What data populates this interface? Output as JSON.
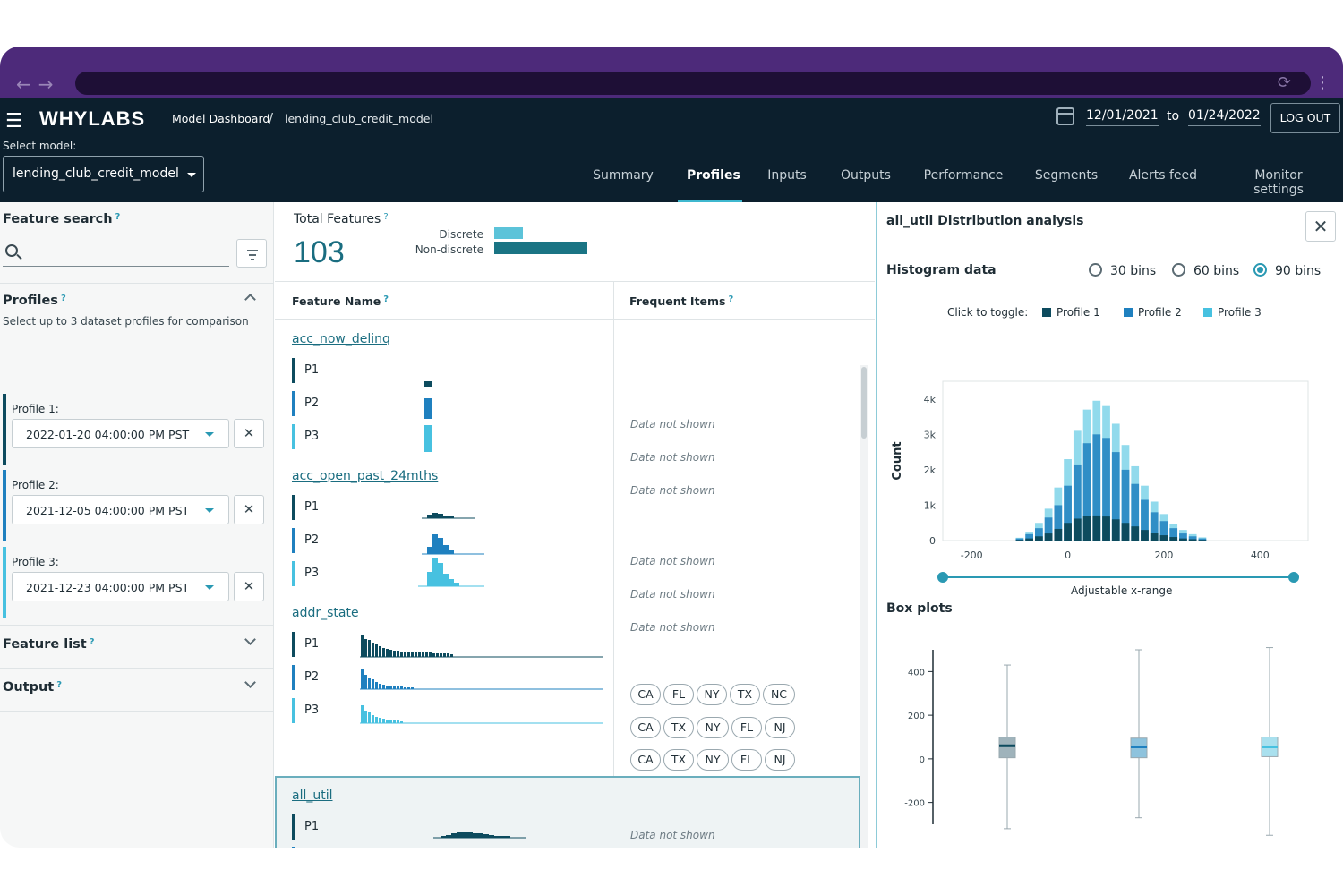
{
  "header": {
    "logo": "WHYLABS",
    "breadcrumb_link": "Model Dashboard",
    "breadcrumb_sep": "/",
    "breadcrumb_current": "lending_club_credit_model",
    "date_from": "12/01/2021",
    "date_to_word": "to",
    "date_to": "01/24/2022",
    "logout": "LOG OUT",
    "select_label": "Select model:",
    "selected_model": "lending_club_credit_model"
  },
  "tabs": [
    "Summary",
    "Profiles",
    "Inputs",
    "Outputs",
    "Performance",
    "Segments",
    "Alerts feed",
    "Monitor settings"
  ],
  "active_tab": "Profiles",
  "left": {
    "feature_search": "Feature search",
    "profiles_title": "Profiles",
    "profiles_sub": "Select up to 3 dataset profiles for comparison",
    "profiles": [
      {
        "label": "Profile 1:",
        "value": "2022-01-20 04:00:00 PM PST",
        "color": "#0d4b5e"
      },
      {
        "label": "Profile 2:",
        "value": "2021-12-05 04:00:00 PM PST",
        "color": "#1f80bf"
      },
      {
        "label": "Profile 3:",
        "value": "2021-12-23 04:00:00 PM PST",
        "color": "#47c1e0"
      }
    ],
    "feature_list": "Feature list",
    "output": "Output",
    "help_mark": "?"
  },
  "middle": {
    "total_features_label": "Total Features",
    "total_features_value": "103",
    "legend_discrete": "Discrete",
    "legend_non_discrete": "Non-discrete",
    "col_feature_name": "Feature Name",
    "col_frequent_items": "Frequent Items",
    "data_not_shown": "Data not shown",
    "profile_labels": [
      "P1",
      "P2",
      "P3"
    ],
    "features": [
      {
        "name": "acc_now_delinq"
      },
      {
        "name": "acc_open_past_24mths"
      },
      {
        "name": "addr_state",
        "items": [
          [
            "CA",
            "FL",
            "NY",
            "TX",
            "NC"
          ],
          [
            "CA",
            "TX",
            "NY",
            "FL",
            "NJ"
          ],
          [
            "CA",
            "TX",
            "NY",
            "FL",
            "NJ"
          ]
        ]
      },
      {
        "name": "all_util"
      }
    ]
  },
  "right": {
    "title": "all_util Distribution analysis",
    "histogram_title": "Histogram data",
    "bin_options": [
      "30 bins",
      "60 bins",
      "90 bins"
    ],
    "selected_bins": "90 bins",
    "click_to_toggle": "Click to toggle:",
    "series": [
      "Profile 1",
      "Profile 2",
      "Profile 3"
    ],
    "slider_label": "Adjustable x-range",
    "boxplots_title": "Box plots"
  },
  "colors": {
    "profile1": "#0d4b5e",
    "profile2": "#1f80bf",
    "profile3": "#47c1e0",
    "accent": "#2a99b3"
  },
  "chart_data": [
    {
      "type": "bar",
      "title": "all_util Distribution analysis",
      "ylabel": "Count",
      "xlim": [
        -260,
        500
      ],
      "ylim": [
        0,
        4500
      ],
      "x_ticks": [
        -200,
        0,
        200,
        400
      ],
      "y_ticks": [
        "0",
        "1k",
        "2k",
        "3k",
        "4k"
      ],
      "x": [
        -100,
        -80,
        -60,
        -40,
        -20,
        0,
        20,
        40,
        60,
        80,
        100,
        120,
        140,
        160,
        180,
        200,
        220,
        240,
        260,
        280
      ],
      "series": [
        {
          "name": "Profile 1",
          "values": [
            20,
            60,
            120,
            200,
            330,
            500,
            620,
            700,
            710,
            680,
            600,
            500,
            400,
            300,
            220,
            150,
            100,
            60,
            40,
            20
          ]
        },
        {
          "name": "Profile 2",
          "values": [
            60,
            180,
            350,
            650,
            1000,
            1550,
            2150,
            2750,
            3000,
            2900,
            2500,
            2000,
            1600,
            1150,
            800,
            550,
            350,
            200,
            120,
            60
          ]
        },
        {
          "name": "Profile 3",
          "values": [
            80,
            250,
            500,
            900,
            1500,
            2300,
            3100,
            3700,
            3950,
            3800,
            3300,
            2700,
            2100,
            1550,
            1100,
            750,
            480,
            300,
            180,
            90
          ]
        }
      ]
    },
    {
      "type": "box",
      "title": "Box plots",
      "ylim": [
        -300,
        500
      ],
      "y_ticks": [
        400,
        200,
        0,
        -200
      ],
      "series": [
        {
          "name": "Profile 1",
          "min": -320,
          "q1": 5,
          "median": 60,
          "q3": 100,
          "max": 430
        },
        {
          "name": "Profile 2",
          "min": -270,
          "q1": 5,
          "median": 55,
          "q3": 95,
          "max": 500
        },
        {
          "name": "Profile 3",
          "min": -350,
          "q1": 10,
          "median": 55,
          "q3": 100,
          "max": 510
        }
      ]
    }
  ]
}
